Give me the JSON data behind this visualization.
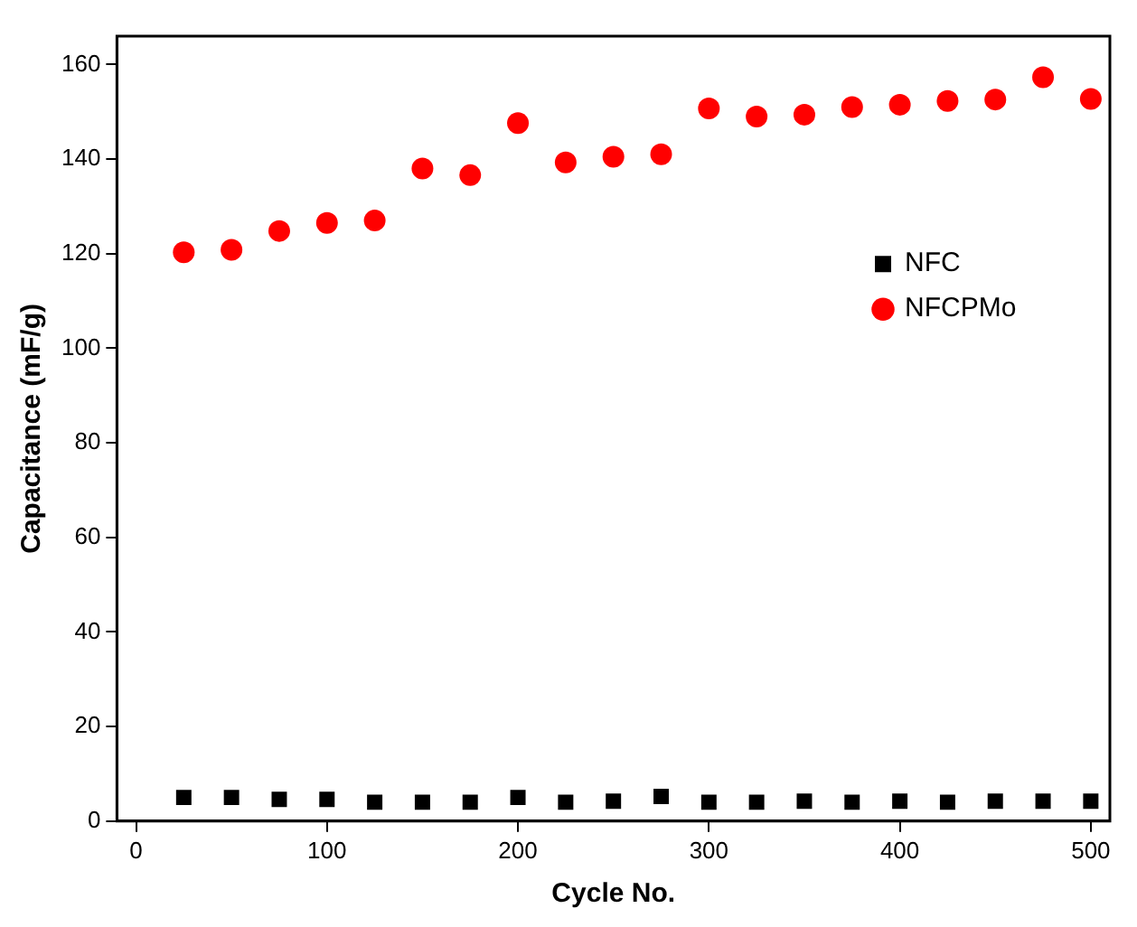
{
  "chart_data": {
    "type": "scatter",
    "xlabel": "Cycle No.",
    "ylabel": "Capacitance (mF/g)",
    "x": [
      25,
      50,
      75,
      100,
      125,
      150,
      175,
      200,
      225,
      250,
      275,
      300,
      325,
      350,
      375,
      400,
      425,
      450,
      475,
      500
    ],
    "xlim": [
      -10,
      510
    ],
    "xticks": [
      0,
      100,
      200,
      300,
      400,
      500
    ],
    "ylim": [
      0,
      166
    ],
    "yticks": [
      0,
      20,
      40,
      60,
      80,
      100,
      120,
      140,
      160
    ],
    "grid": false,
    "legend": "right",
    "series": [
      {
        "name": "NFC",
        "color": "#000000",
        "marker": "square",
        "values": [
          5,
          5,
          4.6,
          4.6,
          4,
          4,
          4,
          5,
          4,
          4.2,
          5.2,
          4,
          4,
          4.2,
          4,
          4.2,
          4,
          4.2,
          4.2,
          4.2
        ]
      },
      {
        "name": "NFCPMo",
        "color": "#ff0000",
        "marker": "circle",
        "values": [
          120.3,
          120.8,
          124.8,
          126.5,
          127,
          138,
          136.6,
          147.6,
          139.3,
          140.5,
          141,
          150.7,
          149,
          149.4,
          151,
          151.5,
          152.3,
          152.6,
          157.3,
          152.7
        ]
      }
    ]
  }
}
